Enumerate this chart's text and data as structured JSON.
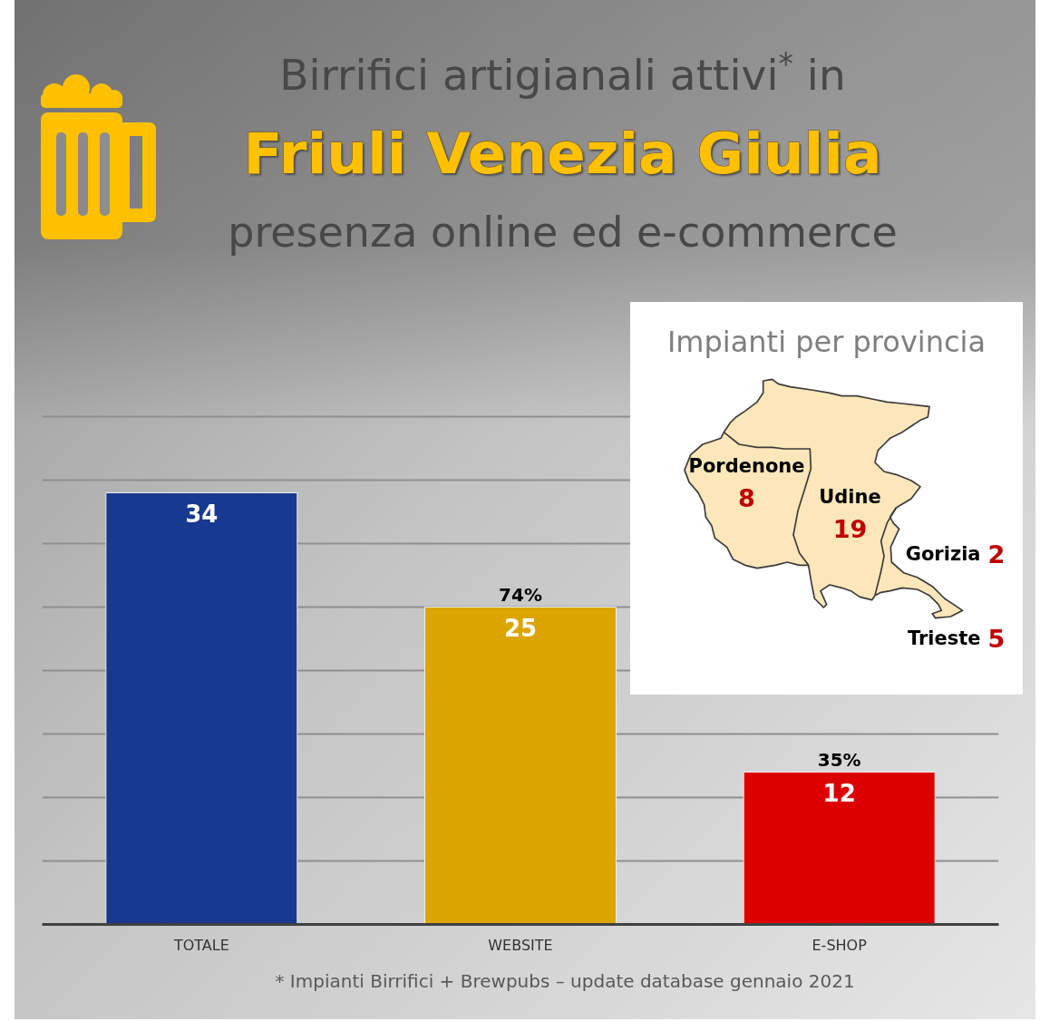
{
  "chart_data": [
    {
      "type": "bar",
      "title": "Birrifici artigianali attivi$^{*}$ in\nFriuli Venezia Giulia",
      "subtitle": "presenza online ed e-commerce",
      "categories": [
        "TOTALE",
        "WEBSITE",
        "E-SHOP"
      ],
      "values": [
        34,
        25,
        12
      ],
      "colors": [
        "#17398f",
        "#dca500",
        "#dc0000"
      ],
      "ylim": [
        0,
        40
      ],
      "yticks": [
        {
          "value": 5,
          "label": null
        },
        {
          "value": 10,
          "label": null
        },
        {
          "value": 15,
          "label": null
        },
        {
          "value": 20,
          "label": null
        },
        {
          "value": 25,
          "label": null
        },
        {
          "value": 30,
          "label": null
        },
        {
          "value": 35,
          "label": null
        },
        {
          "value": 40,
          "label": null
        }
      ],
      "grid": "y",
      "tick_labels": "x",
      "data_labels": true,
      "annotations": [
        {
          "text": "74%",
          "x": "WEBSITE",
          "y": 25
        },
        {
          "text": "35%",
          "x": "E-SHOP",
          "y": 12
        },
        "* Impianti Birrifici + Brewpubs – update database gennaio 2021"
      ]
    },
    {
      "type": "other",
      "title": "Impianti per provincia",
      "categories": [
        "Pordenone",
        "Udine",
        "Gorizia",
        "Trieste"
      ],
      "values": [
        8,
        19,
        2,
        5
      ],
      "data_labels": true
    }
  ]
}
